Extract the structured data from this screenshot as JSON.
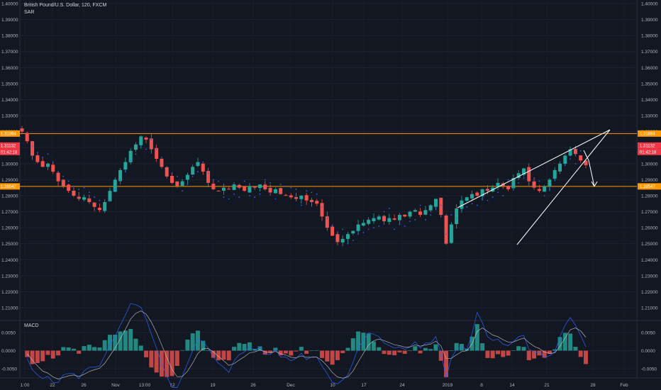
{
  "header": {
    "symbol_title": "British Pound/U.S. Dollar, 120, FXCM",
    "indicator": "SAR"
  },
  "macd_panel": {
    "label": "MACD"
  },
  "colors": {
    "background": "#131722",
    "up": "#26a69a",
    "down": "#ef5350",
    "sar": "#2962ff",
    "level_line": "#ff9800",
    "price_tag": "#f23645",
    "drawing": "#ffffff",
    "macd_signal": "#c7c7c7"
  },
  "chart_data": [
    {
      "type": "candlestick",
      "title": "British Pound/U.S. Dollar, 120, FXCM",
      "y_ticks": [
        "1.40000",
        "1.39000",
        "1.38000",
        "1.37000",
        "1.36000",
        "1.35000",
        "1.34000",
        "1.33000",
        "1.32000",
        "1.31000",
        "1.30000",
        "1.29000",
        "1.28000",
        "1.27000",
        "1.26000",
        "1.25000",
        "1.24000",
        "1.23000",
        "1.22000",
        "1.21000"
      ],
      "ylim": [
        1.2,
        1.405
      ],
      "x_ticks": [
        "1:00",
        "22",
        "26",
        "Nov",
        "13:00",
        "12",
        "19",
        "26",
        "Dec",
        "10",
        "17",
        "24",
        "2019",
        "8",
        "14",
        "21",
        "28",
        "Feb"
      ],
      "horizontal_levels": [
        1.3188,
        1.2858
      ],
      "level_tags": [
        "1.31894",
        "1.28547"
      ],
      "last_price_tag": "1.31132",
      "countdown_tag": "01:42:18",
      "close_path": [
        1.32,
        1.314,
        1.305,
        1.301,
        1.298,
        1.3,
        1.295,
        1.289,
        1.286,
        1.283,
        1.28,
        1.278,
        1.279,
        1.276,
        1.273,
        1.271,
        1.276,
        1.283,
        1.29,
        1.296,
        1.301,
        1.308,
        1.312,
        1.317,
        1.315,
        1.309,
        1.303,
        1.298,
        1.292,
        1.288,
        1.286,
        1.289,
        1.293,
        1.298,
        1.301,
        1.295,
        1.288,
        1.284,
        1.283,
        1.285,
        1.284,
        1.287,
        1.285,
        1.283,
        1.286,
        1.285,
        1.287,
        1.284,
        1.282,
        1.284,
        1.281,
        1.28,
        1.279,
        1.278,
        1.28,
        1.277,
        1.276,
        1.275,
        1.267,
        1.26,
        1.255,
        1.251,
        1.253,
        1.256,
        1.258,
        1.262,
        1.263,
        1.265,
        1.266,
        1.267,
        1.264,
        1.266,
        1.265,
        1.268,
        1.267,
        1.27,
        1.271,
        1.268,
        1.271,
        1.274,
        1.278,
        1.268,
        1.25,
        1.262,
        1.272,
        1.277,
        1.279,
        1.281,
        1.28,
        1.284,
        1.283,
        1.285,
        1.288,
        1.286,
        1.284,
        1.291,
        1.294,
        1.297,
        1.289,
        1.285,
        1.283,
        1.286,
        1.29,
        1.296,
        1.3,
        1.305,
        1.309,
        1.306,
        1.302,
        1.299
      ]
    },
    {
      "type": "bar",
      "title": "MACD",
      "y_ticks": [
        "0.0050",
        "0.0000",
        "-0.0050"
      ],
      "ylim": [
        -0.0075,
        0.0075
      ]
    }
  ]
}
